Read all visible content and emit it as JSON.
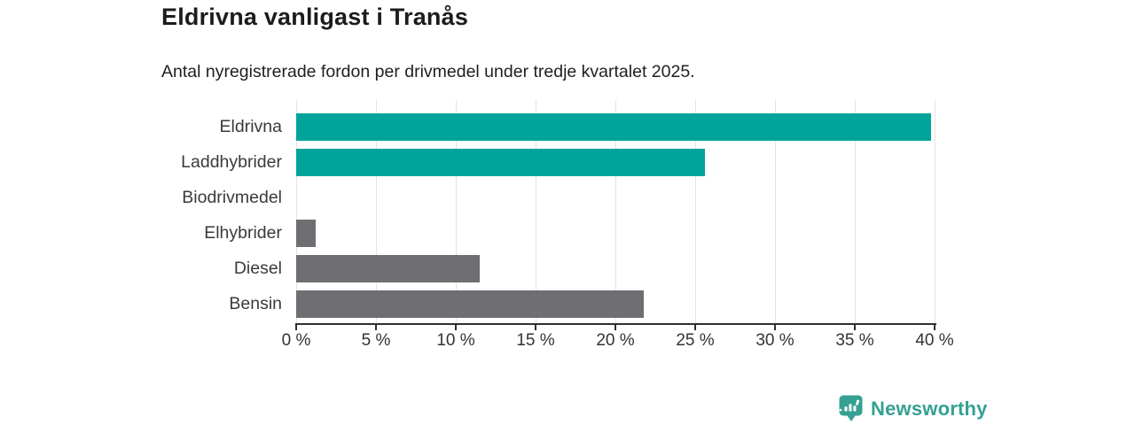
{
  "header": {
    "title": "Eldrivna vanligast i Tranås",
    "subtitle": "Antal nyregistrerade fordon per drivmedel under tredje kvartalet 2025."
  },
  "chart_data": {
    "type": "bar",
    "orientation": "horizontal",
    "title": "Eldrivna vanligast i Tranås",
    "subtitle": "Antal nyregistrerade fordon per drivmedel under tredje kvartalet 2025.",
    "categories": [
      "Eldrivna",
      "Laddhybrider",
      "Biodrivmedel",
      "Elhybrider",
      "Diesel",
      "Bensin"
    ],
    "values": [
      39.8,
      25.6,
      0,
      1.2,
      11.5,
      21.8
    ],
    "unit": "%",
    "bar_colors": [
      "#00a49a",
      "#00a49a",
      "#6e6e73",
      "#6e6e73",
      "#6e6e73",
      "#6e6e73"
    ],
    "x_axis": {
      "min": 0,
      "max": 40,
      "tick_step": 5,
      "tick_labels": [
        "0 %",
        "5 %",
        "10 %",
        "15 %",
        "20 %",
        "25 %",
        "30 %",
        "35 %",
        "40 %"
      ]
    },
    "grid": true,
    "legend": null
  },
  "colors": {
    "teal": "#00a49a",
    "gray": "#6e6e73",
    "grid": "#e3e3e3",
    "axis": "#2f2f2f",
    "title_text": "#1c1c1a",
    "label_text": "#3a3a3a",
    "brand": "#35a093"
  },
  "footer": {
    "brand_name": "Newsworthy",
    "logo_icon": "newsworthy-bubble-chart-icon"
  }
}
